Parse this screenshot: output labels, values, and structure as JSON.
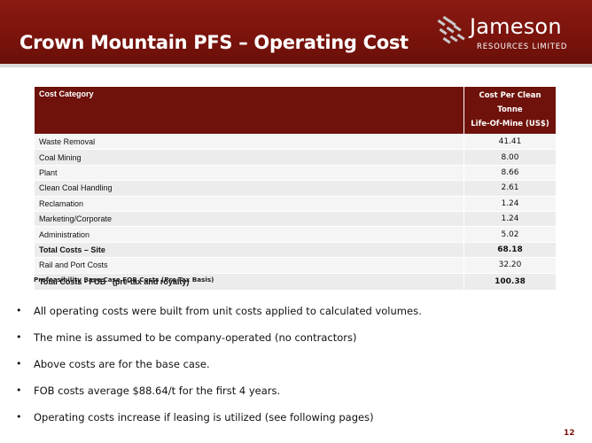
{
  "slide": {
    "title": "Crown Mountain PFS – Operating Cost",
    "page_number": "12"
  },
  "logo": {
    "name": "Jameson",
    "subtitle": "RESOURCES LIMITED"
  },
  "table": {
    "header_col1": "Cost Category",
    "header_col2_line1": "Cost Per Clean Tonne",
    "header_col2_line2": "Life-Of-Mine (US$)",
    "rows": [
      {
        "category": "Waste Removal",
        "value": "41.41"
      },
      {
        "category": "Coal Mining",
        "value": "8.00"
      },
      {
        "category": "Plant",
        "value": "8.66"
      },
      {
        "category": "Clean Coal Handling",
        "value": "2.61"
      },
      {
        "category": "Reclamation",
        "value": "1.24"
      },
      {
        "category": "Marketing/Corporate",
        "value": "1.24"
      },
      {
        "category": "Administration",
        "value": "5.02"
      },
      {
        "category": "Total Costs – Site",
        "value": "68.18"
      },
      {
        "category": "Rail and Port Costs",
        "value": "32.20"
      },
      {
        "category": "Total Costs - FOB   (pre-tax and royalty)",
        "value": "100.38"
      }
    ],
    "footnote": "Prefeasibility Base Case FOB Costs (Pre-Tax Basis)"
  },
  "bullets": [
    "All operating costs were built from unit costs applied to calculated volumes.",
    "The mine is assumed to be company-operated (no contractors)",
    "Above costs are for the base case.",
    "FOB costs average $88.64/t for the first 4 years.",
    "Operating costs increase if leasing is utilized (see following pages)"
  ],
  "colors": {
    "header_bg": "#7b140d",
    "table_header_bg": "#6e120b",
    "logo_mark_gray": "#bfbfbf"
  }
}
